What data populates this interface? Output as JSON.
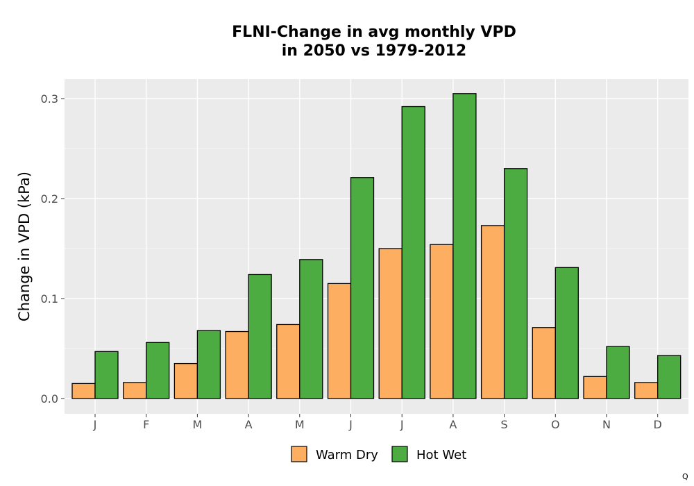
{
  "chart_data": {
    "type": "bar",
    "title_lines": [
      "FLNI-Change in avg monthly VPD",
      "in 2050 vs 1979-2012"
    ],
    "xlabel": "",
    "ylabel": "Change in VPD (kPa)",
    "categories": [
      "J",
      "F",
      "M",
      "A",
      "M",
      "J",
      "J",
      "A",
      "S",
      "O",
      "N",
      "D"
    ],
    "ylim": [
      -0.015,
      0.32
    ],
    "yticks": [
      0.0,
      0.1,
      0.2,
      0.3
    ],
    "ytick_labels": [
      "0.0",
      "0.1",
      "0.2",
      "0.3"
    ],
    "grid": true,
    "legend_position": "bottom",
    "series": [
      {
        "name": "Warm Dry",
        "color": "#FDAE61",
        "values": [
          0.015,
          0.016,
          0.035,
          0.067,
          0.074,
          0.115,
          0.15,
          0.154,
          0.173,
          0.071,
          0.022,
          0.016
        ]
      },
      {
        "name": "Hot Wet",
        "color": "#4DAC41",
        "values": [
          0.047,
          0.056,
          0.068,
          0.124,
          0.139,
          0.221,
          0.292,
          0.305,
          0.23,
          0.131,
          0.052,
          0.043
        ]
      }
    ]
  },
  "corner_mark": "Q"
}
